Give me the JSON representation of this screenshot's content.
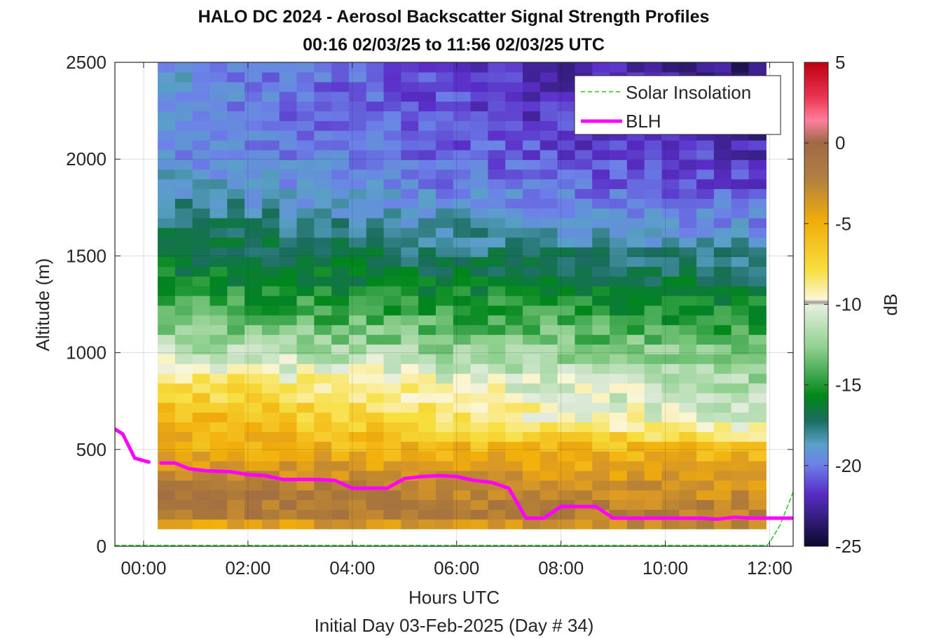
{
  "chart_data": {
    "type": "heatmap",
    "title": "HALO DC 2024 - Aerosol Backscatter Signal Strength Profiles",
    "subtitle": "00:16 02/03/25 to 11:56 02/03/25  UTC",
    "xlabel": "Hours UTC",
    "xlabel2": "Initial Day 03-Feb-2025 (Day # 34)",
    "ylabel": "Altitude (m)",
    "xlim": [
      -0.55,
      12.45
    ],
    "ylim": [
      0,
      2500
    ],
    "x_ticks": [
      0,
      2,
      4,
      6,
      8,
      10,
      12
    ],
    "x_tick_labels": [
      "00:00",
      "02:00",
      "04:00",
      "06:00",
      "08:00",
      "10:00",
      "12:00"
    ],
    "y_ticks": [
      0,
      500,
      1000,
      1500,
      2000,
      2500
    ],
    "y_tick_labels": [
      "0",
      "500",
      "1000",
      "1500",
      "2000",
      "2500"
    ],
    "grid": true,
    "colorbar": {
      "label": "dB",
      "range": [
        -25,
        5
      ],
      "ticks": [
        5,
        0,
        -5,
        -10,
        -15,
        -20,
        -25
      ],
      "tick_labels": [
        "5",
        "0",
        "-5",
        "-10",
        "-15",
        "-20",
        "-25"
      ]
    },
    "heatmap": {
      "x_start": 0.27,
      "x_end": 11.93,
      "y_start": 90,
      "y_end": 2500,
      "db_profile_by_altitude": [
        {
          "altitude": 90,
          "db_start": -7,
          "db_end": -3
        },
        {
          "altitude": 150,
          "db_start": -2,
          "db_end": -2.5
        },
        {
          "altitude": 300,
          "db_start": -2,
          "db_end": -4
        },
        {
          "altitude": 500,
          "db_start": -5.5,
          "db_end": -6
        },
        {
          "altitude": 650,
          "db_start": -5.5,
          "db_end": -11
        },
        {
          "altitude": 850,
          "db_start": -8,
          "db_end": -12
        },
        {
          "altitude": 1000,
          "db_start": -11,
          "db_end": -13
        },
        {
          "altitude": 1300,
          "db_start": -14.5,
          "db_end": -15.5
        },
        {
          "altitude": 1600,
          "db_start": -16.5,
          "db_end": -19
        },
        {
          "altitude": 1900,
          "db_start": -19,
          "db_end": -21.5
        },
        {
          "altitude": 2200,
          "db_start": -19.5,
          "db_end": -23
        },
        {
          "altitude": 2500,
          "db_start": -19,
          "db_end": -24
        }
      ]
    },
    "series": [
      {
        "name": "Solar Insolation",
        "style": "dashed",
        "color": "#22cc22",
        "x": [
          -0.55,
          11.95,
          12.0,
          12.2,
          12.45
        ],
        "y": [
          5,
          5,
          20,
          110,
          280
        ]
      },
      {
        "name": "BLH",
        "style": "solid",
        "color": "#ff00ff",
        "segments": [
          {
            "x": [
              -0.55,
              -0.4,
              -0.17,
              0.1
            ],
            "y": [
              605,
              580,
              455,
              435
            ]
          },
          {
            "x": [
              0.33,
              0.6,
              0.87,
              1.2,
              1.67,
              2.0,
              2.33,
              2.67,
              3.0,
              3.33,
              3.67,
              4.0,
              4.33,
              4.67,
              5.0,
              5.33,
              5.67,
              6.0,
              6.33,
              6.67,
              7.0,
              7.33,
              7.67,
              8.0,
              8.33,
              8.67,
              9.0,
              9.33,
              9.67,
              10.0,
              10.33,
              10.67,
              11.0,
              11.33,
              11.67,
              12.0,
              12.45
            ],
            "y": [
              430,
              430,
              400,
              390,
              385,
              370,
              365,
              345,
              345,
              345,
              340,
              300,
              300,
              300,
              350,
              360,
              365,
              360,
              340,
              330,
              300,
              145,
              145,
              205,
              205,
              205,
              145,
              145,
              145,
              145,
              145,
              145,
              140,
              150,
              145,
              145,
              145
            ]
          }
        ]
      }
    ],
    "legend": {
      "placement": "top-right",
      "entries": [
        "Solar Insolation",
        "BLH"
      ]
    }
  }
}
